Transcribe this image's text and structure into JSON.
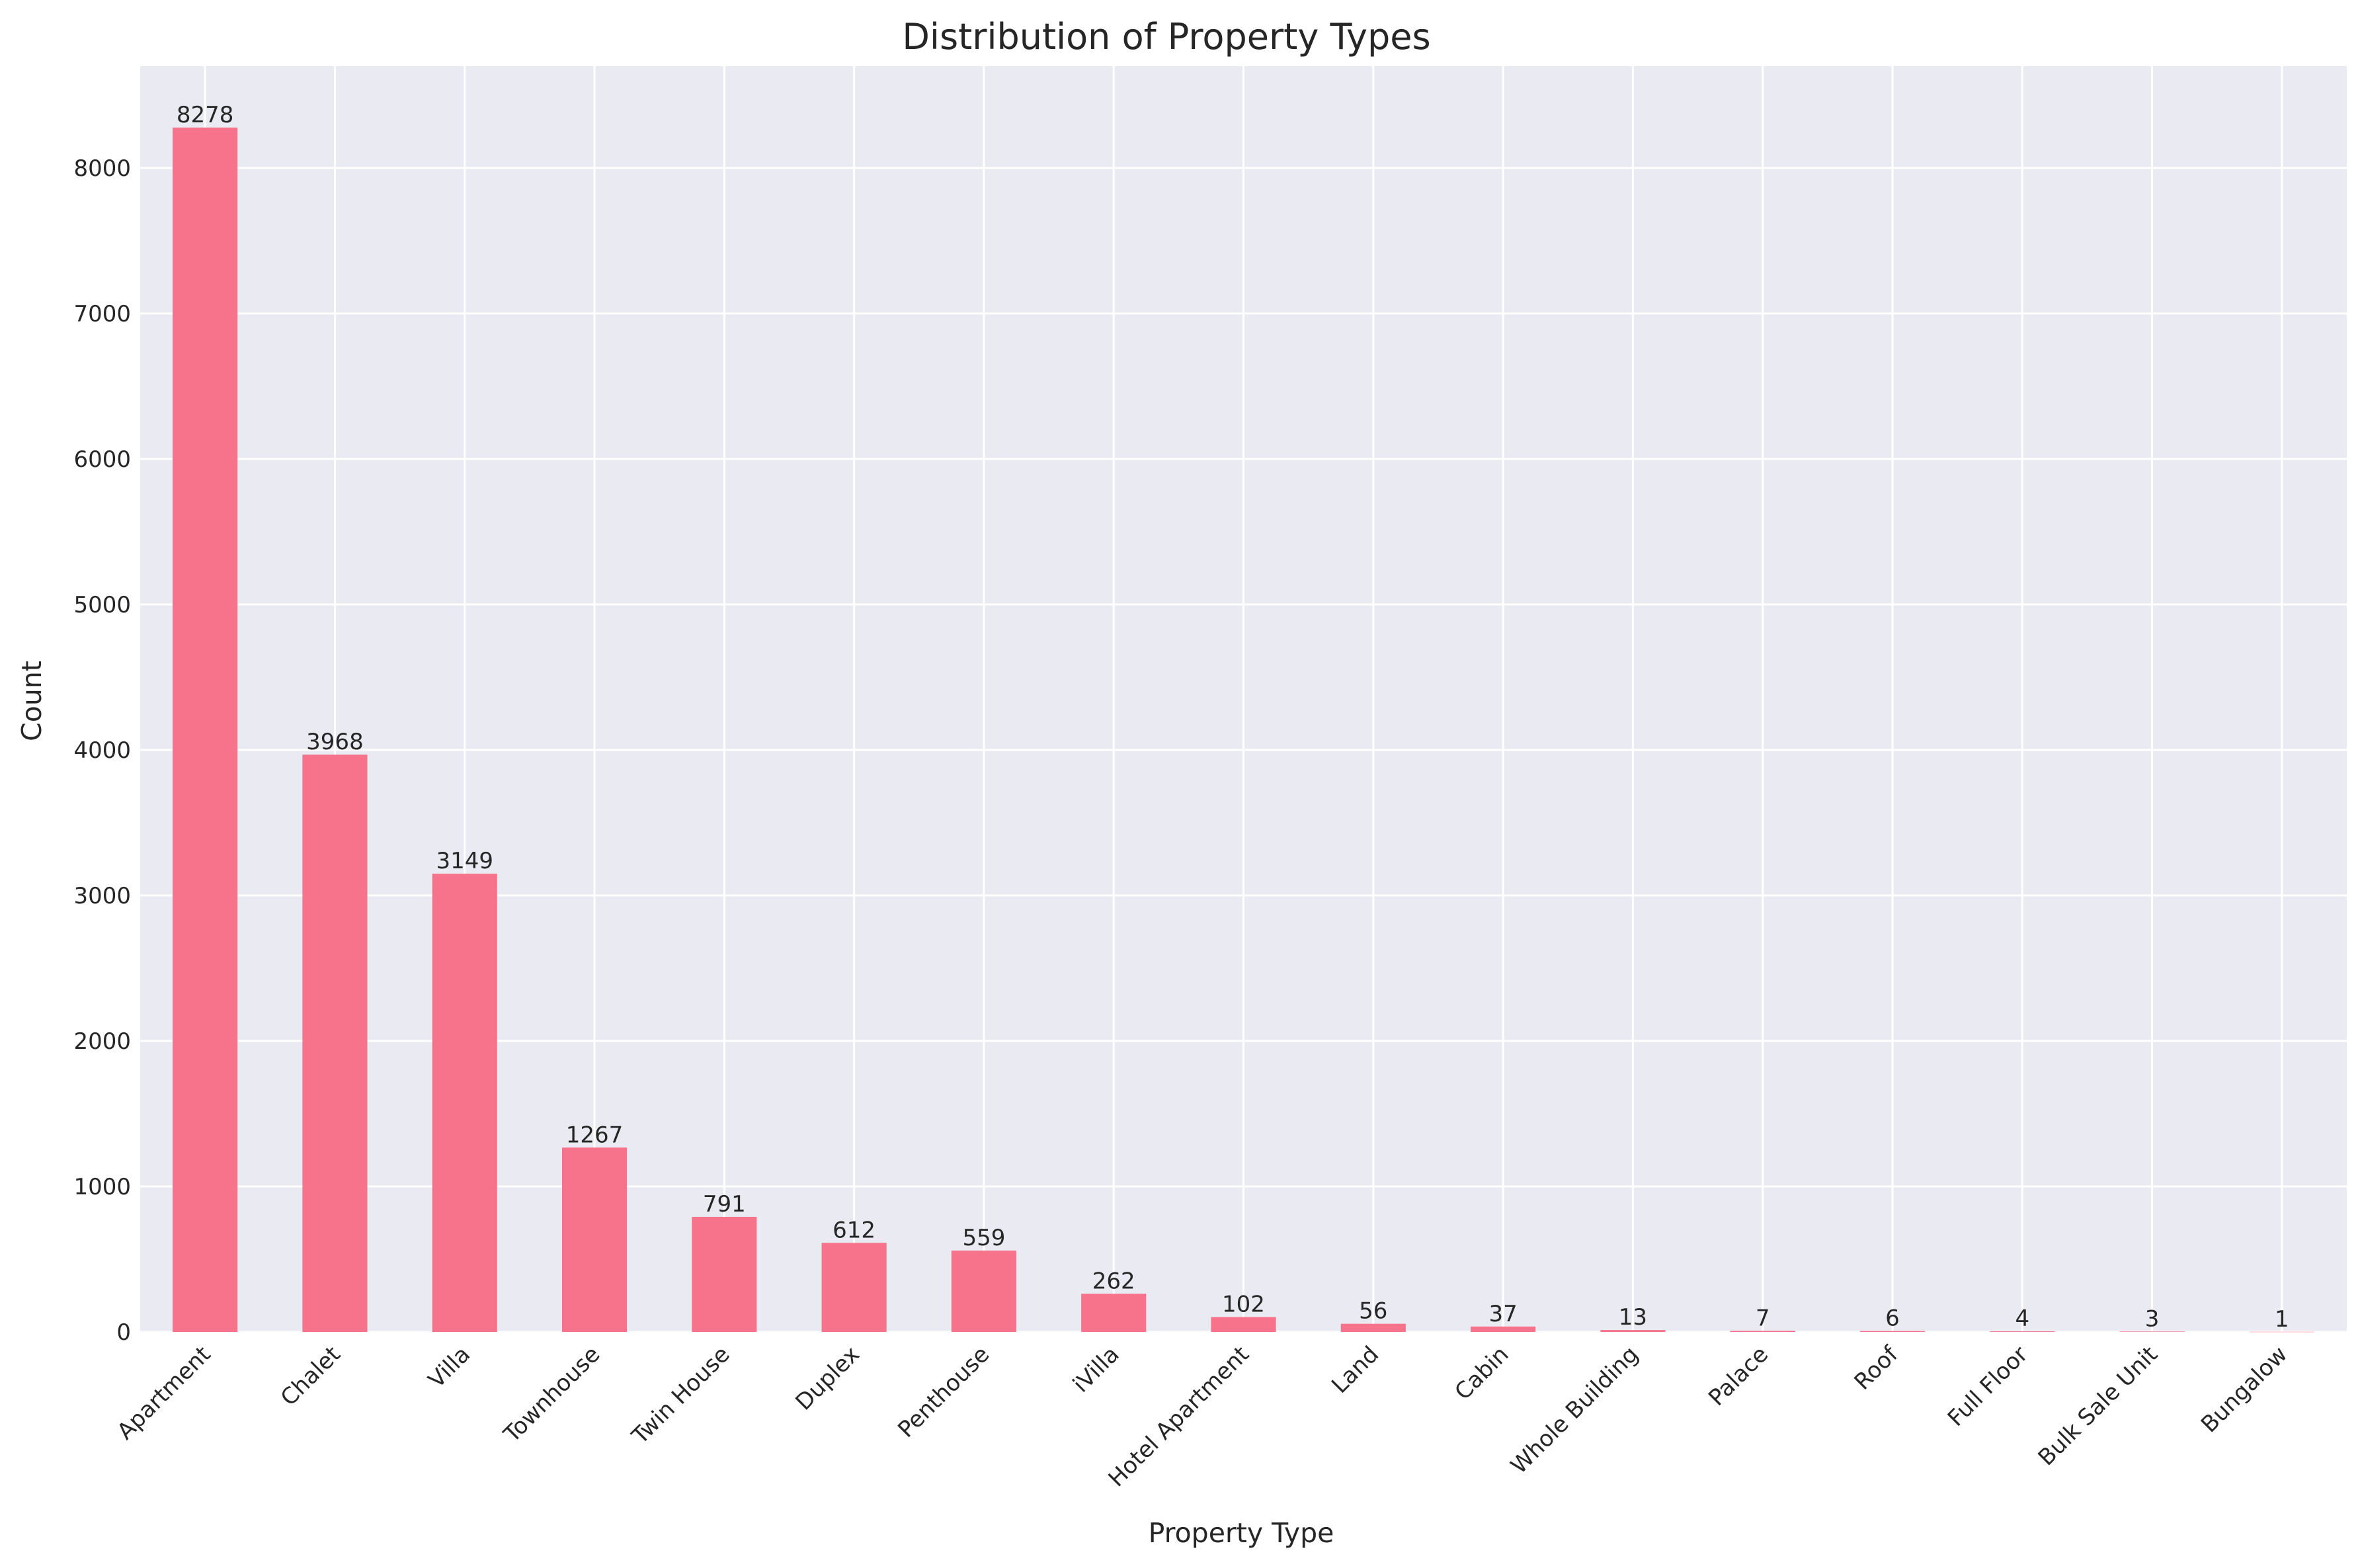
{
  "chart_data": {
    "type": "bar",
    "title": "Distribution of Property Types",
    "xlabel": "Property Type",
    "ylabel": "Count",
    "ylim": [
      0,
      8700
    ],
    "yticks": [
      0,
      1000,
      2000,
      3000,
      4000,
      5000,
      6000,
      7000,
      8000
    ],
    "grid": true,
    "legend": "none",
    "categories": [
      "Apartment",
      "Chalet",
      "Villa",
      "Townhouse",
      "Twin House",
      "Duplex",
      "Penthouse",
      "iVilla",
      "Hotel Apartment",
      "Land",
      "Cabin",
      "Whole Building",
      "Palace",
      "Roof",
      "Full Floor",
      "Bulk Sale Unit",
      "Bungalow"
    ],
    "values": [
      8278,
      3968,
      3149,
      1267,
      791,
      612,
      559,
      262,
      102,
      56,
      37,
      13,
      7,
      6,
      4,
      3,
      1
    ],
    "colors": {
      "bar": "#f7738b",
      "background": "#eaeaf2",
      "grid": "#ffffff",
      "text": "#262626"
    }
  }
}
